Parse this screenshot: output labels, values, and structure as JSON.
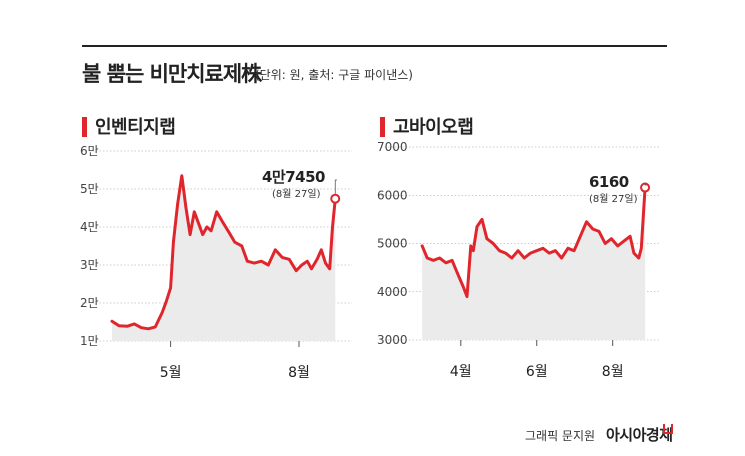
{
  "title": "불 뿜는 비만치료제株",
  "subtitle": "(단위: 원, 출처: 구글 파이낸스)",
  "credit": "그래픽 문지원",
  "brand": "아시아경제",
  "colors": {
    "line": "#e0262d",
    "area": "#ebebeb",
    "grid": "#999999"
  },
  "chart_data": [
    {
      "type": "area",
      "title": "인벤티지랩",
      "ylim": [
        10000,
        60000
      ],
      "yticks": [
        10000,
        20000,
        30000,
        40000,
        50000,
        60000
      ],
      "ytick_labels": [
        "1만",
        "2만",
        "3만",
        "4만",
        "5만",
        "6만"
      ],
      "x": [
        "03-20",
        "03-25",
        "03-31",
        "04-05",
        "04-10",
        "04-15",
        "04-20",
        "04-25",
        "04-28",
        "05-01",
        "05-03",
        "05-06",
        "05-09",
        "05-12",
        "05-15",
        "05-18",
        "05-21",
        "05-24",
        "05-27",
        "05-30",
        "06-03",
        "06-07",
        "06-12",
        "06-16",
        "06-21",
        "06-25",
        "06-30",
        "07-05",
        "07-10",
        "07-15",
        "07-20",
        "07-25",
        "07-30",
        "08-03",
        "08-07",
        "08-10",
        "08-14",
        "08-17",
        "08-20",
        "08-23",
        "08-25",
        "08-27"
      ],
      "values": [
        15200,
        14000,
        13900,
        14500,
        13500,
        13200,
        13700,
        17500,
        20500,
        24000,
        36000,
        46000,
        53500,
        45000,
        38000,
        44000,
        41000,
        38000,
        40000,
        39000,
        44000,
        41500,
        38500,
        36000,
        35000,
        31000,
        30500,
        31000,
        30000,
        34000,
        32000,
        31500,
        28500,
        30000,
        31000,
        29000,
        31500,
        34000,
        30500,
        29000,
        40000,
        47450
      ],
      "xticks": [
        {
          "x": "05-01",
          "label": "5월"
        },
        {
          "x": "08-01",
          "label": "8월"
        }
      ],
      "xlim": [
        "03-20",
        "09-08"
      ],
      "annotation": {
        "value": "4만7450",
        "date": "(8월 27일)"
      }
    },
    {
      "type": "area",
      "title": "고바이오랩",
      "ylim": [
        3000,
        7000
      ],
      "yticks": [
        3000,
        4000,
        5000,
        6000,
        7000
      ],
      "ytick_labels": [
        "3000",
        "4000",
        "5000",
        "6000",
        "7000"
      ],
      "x": [
        "03-01",
        "03-05",
        "03-10",
        "03-15",
        "03-20",
        "03-25",
        "03-29",
        "04-03",
        "04-06",
        "04-09",
        "04-11",
        "04-14",
        "04-18",
        "04-22",
        "04-27",
        "05-02",
        "05-07",
        "05-12",
        "05-17",
        "05-22",
        "05-27",
        "06-01",
        "06-06",
        "06-11",
        "06-16",
        "06-21",
        "06-26",
        "07-01",
        "07-06",
        "07-11",
        "07-16",
        "07-21",
        "07-26",
        "07-31",
        "08-05",
        "08-10",
        "08-15",
        "08-18",
        "08-20",
        "08-22",
        "08-24",
        "08-27"
      ],
      "values": [
        4950,
        4700,
        4650,
        4700,
        4600,
        4650,
        4400,
        4100,
        3900,
        4950,
        4850,
        5350,
        5500,
        5100,
        5000,
        4850,
        4800,
        4700,
        4850,
        4700,
        4800,
        4850,
        4900,
        4800,
        4850,
        4700,
        4900,
        4850,
        5150,
        5450,
        5300,
        5250,
        5000,
        5100,
        4950,
        5050,
        5150,
        4800,
        4750,
        4700,
        4900,
        6160
      ],
      "xticks": [
        {
          "x": "04-01",
          "label": "4월"
        },
        {
          "x": "06-01",
          "label": "6월"
        },
        {
          "x": "08-01",
          "label": "8월"
        }
      ],
      "xlim": [
        "02-20",
        "09-08"
      ],
      "annotation": {
        "value": "6160",
        "date": "(8월 27일)"
      }
    }
  ]
}
